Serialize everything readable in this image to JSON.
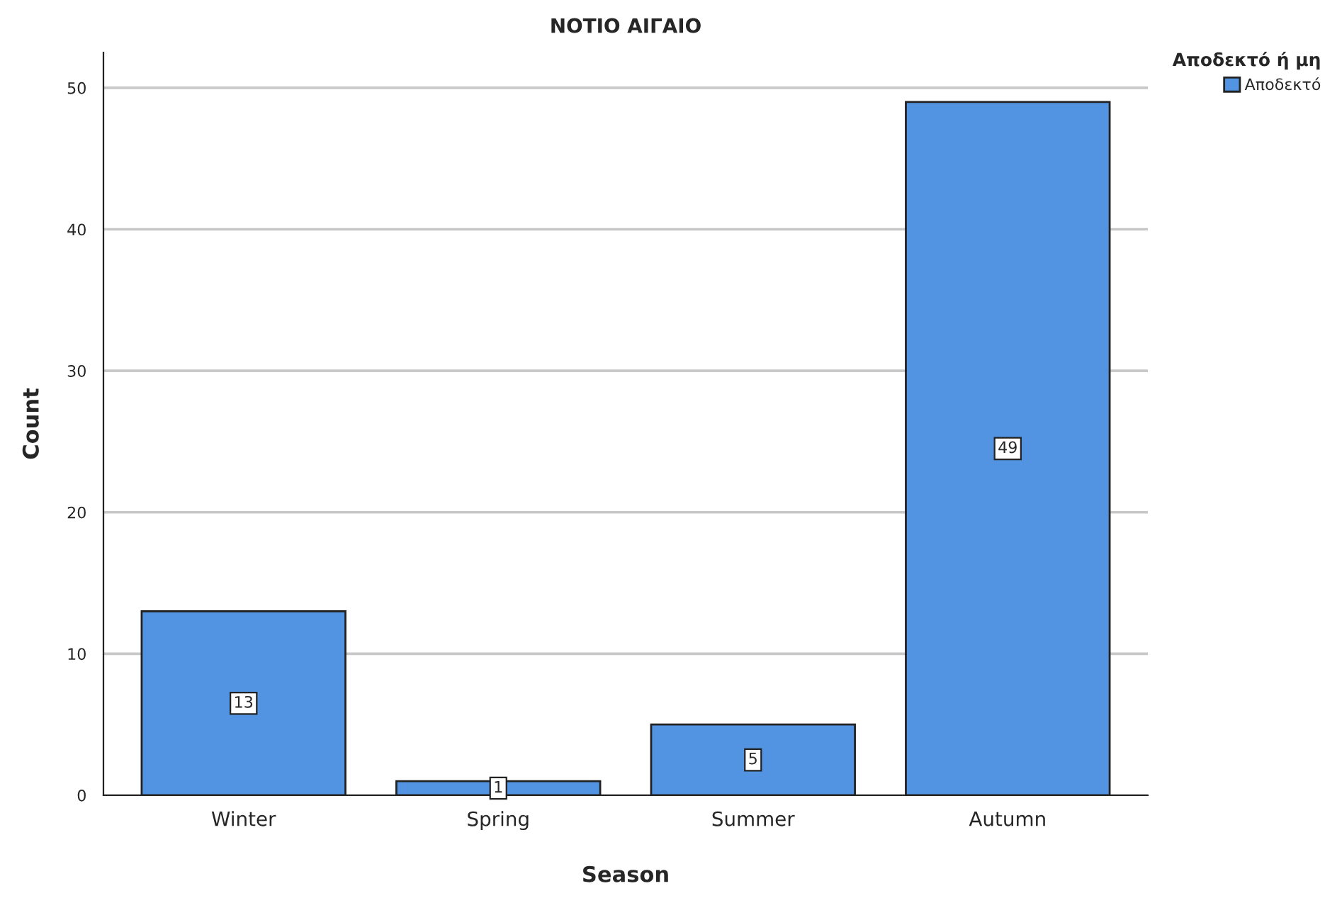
{
  "chart_data": {
    "type": "bar",
    "title": "ΝΟΤΙΟ ΑΙΓΑΙΟ",
    "xlabel": "Season",
    "ylabel": "Count",
    "legend_title": "Αποδεκτό ή μη",
    "categories": [
      "Winter",
      "Spring",
      "Summer",
      "Autumn"
    ],
    "series": [
      {
        "name": "Αποδεκτό",
        "color": "#5294e2",
        "values": [
          13,
          1,
          5,
          49
        ]
      }
    ],
    "ylim": [
      0,
      52.5
    ],
    "yticks": [
      0,
      10,
      20,
      30,
      40,
      50
    ],
    "grid": "y",
    "legend": "top right",
    "data_labels": true
  }
}
